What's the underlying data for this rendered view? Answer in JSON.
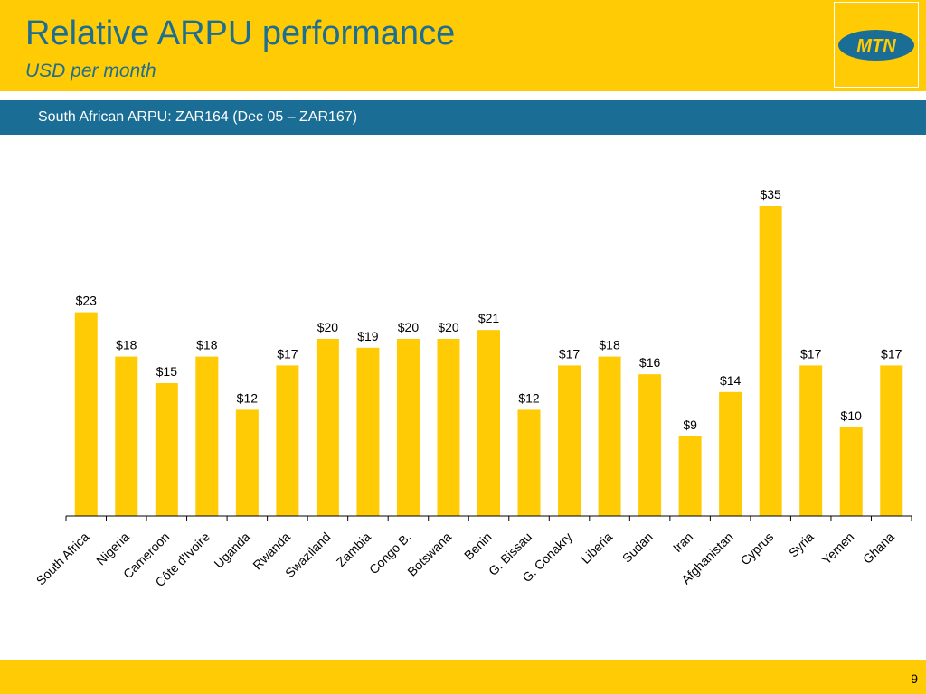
{
  "header": {
    "title": "Relative ARPU performance",
    "subtitle": "USD per month",
    "logo_text": "MTN"
  },
  "band": {
    "text": "South African ARPU: ZAR164  (Dec 05 – ZAR167)"
  },
  "footer": {
    "page_number": "9"
  },
  "colors": {
    "brand_yellow": "#FFCB05",
    "brand_blue": "#1A6D94",
    "title_blue": "#1E6E92",
    "bar": "#FFCB05"
  },
  "chart_data": {
    "type": "bar",
    "title": "",
    "xlabel": "",
    "ylabel": "",
    "categories": [
      "South Africa",
      "Nigeria",
      "Cameroon",
      "Côte d'Ivoire",
      "Uganda",
      "Rwanda",
      "Swaziland",
      "Zambia",
      "Congo B.",
      "Botswana",
      "Benin",
      "G. Bissau",
      "G. Conakry",
      "Liberia",
      "Sudan",
      "Iran",
      "Afghanistan",
      "Cyprus",
      "Syria",
      "Yemen",
      "Ghana"
    ],
    "values": [
      23,
      18,
      15,
      18,
      12,
      17,
      20,
      19,
      20,
      20,
      21,
      12,
      17,
      18,
      16,
      9,
      14,
      35,
      17,
      10,
      17
    ],
    "labels": [
      "$23",
      "$18",
      "$15",
      "$18",
      "$12",
      "$17",
      "$20",
      "$19",
      "$20",
      "$20",
      "$21",
      "$12",
      "$17",
      "$18",
      "$16",
      "$9",
      "$14",
      "$35",
      "$17",
      "$10",
      "$17"
    ],
    "ylim": [
      0,
      35
    ],
    "grid": false,
    "legend": "none"
  }
}
